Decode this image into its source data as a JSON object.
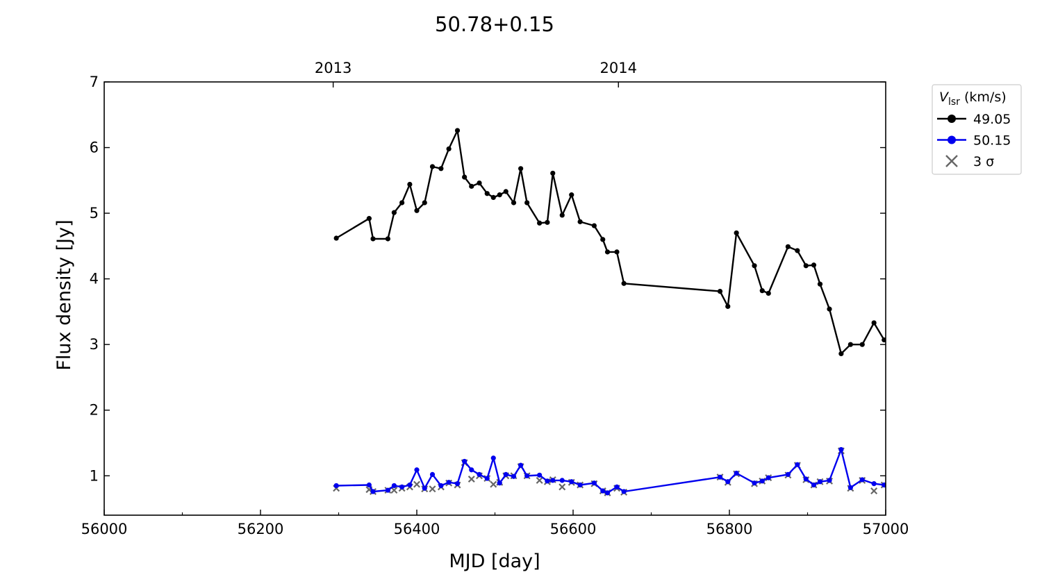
{
  "chart_data": {
    "type": "line",
    "title": "50.78+0.15",
    "xlabel": "MJD [day]",
    "ylabel": "Flux density [Jy]",
    "xlim": [
      56000,
      57000
    ],
    "ylim": [
      0.4,
      7
    ],
    "x_ticks": [
      56000,
      56200,
      56400,
      56600,
      56800,
      57000
    ],
    "y_ticks": [
      1,
      2,
      3,
      4,
      5,
      6,
      7
    ],
    "top_axis_ticks": [
      {
        "label": "2013",
        "x": 56293
      },
      {
        "label": "2014",
        "x": 56658
      }
    ],
    "grid": false,
    "legend": {
      "title_main": "V",
      "title_sub": "lsr",
      "title_unit": " (km/s)",
      "placement": "upper-right-outside"
    },
    "series": [
      {
        "name": "49.05",
        "color": "#000000",
        "marker": "circle",
        "x": [
          56297,
          56339,
          56344,
          56363,
          56371,
          56381,
          56391,
          56400,
          56410,
          56420,
          56431,
          56441,
          56452,
          56461,
          56470,
          56480,
          56490,
          56498,
          56506,
          56514,
          56524,
          56533,
          56541,
          56557,
          56567,
          56574,
          56586,
          56598,
          56609,
          56627,
          56638,
          56644,
          56656,
          56665,
          56788,
          56798,
          56809,
          56832,
          56842,
          56850,
          56875,
          56887,
          56898,
          56908,
          56916,
          56928,
          56943,
          56955,
          56970,
          56985,
          56998
        ],
        "y": [
          4.62,
          4.92,
          4.61,
          4.61,
          5.01,
          5.16,
          5.44,
          5.04,
          5.16,
          5.71,
          5.68,
          5.98,
          6.26,
          5.55,
          5.41,
          5.46,
          5.3,
          5.24,
          5.28,
          5.33,
          5.16,
          5.68,
          5.16,
          4.85,
          4.86,
          5.61,
          4.97,
          5.28,
          4.87,
          4.81,
          4.6,
          4.41,
          4.41,
          3.93,
          3.81,
          3.58,
          4.7,
          4.2,
          3.82,
          3.78,
          4.49,
          4.43,
          4.2,
          4.21,
          3.92,
          3.54,
          2.86,
          3.0,
          3.0,
          3.33,
          3.07
        ]
      },
      {
        "name": "50.15",
        "color": "#0000ee",
        "marker": "circle",
        "x": [
          56297,
          56339,
          56344,
          56363,
          56371,
          56381,
          56391,
          56400,
          56410,
          56420,
          56431,
          56441,
          56452,
          56461,
          56470,
          56480,
          56490,
          56498,
          56506,
          56514,
          56524,
          56533,
          56541,
          56557,
          56567,
          56574,
          56586,
          56598,
          56609,
          56627,
          56638,
          56644,
          56656,
          56665,
          56788,
          56798,
          56809,
          56832,
          56842,
          56850,
          56875,
          56887,
          56898,
          56908,
          56916,
          56928,
          56943,
          56955,
          56970,
          56985,
          56998
        ],
        "y": [
          0.85,
          0.86,
          0.76,
          0.78,
          0.85,
          0.83,
          0.86,
          1.09,
          0.81,
          1.02,
          0.85,
          0.9,
          0.88,
          1.22,
          1.09,
          1.02,
          0.96,
          1.27,
          0.89,
          1.02,
          0.99,
          1.16,
          1.0,
          1.01,
          0.92,
          0.93,
          0.93,
          0.91,
          0.86,
          0.89,
          0.77,
          0.74,
          0.83,
          0.76,
          0.98,
          0.91,
          1.04,
          0.89,
          0.92,
          0.97,
          1.02,
          1.17,
          0.95,
          0.86,
          0.91,
          0.93,
          1.4,
          0.82,
          0.94,
          0.88,
          0.86
        ]
      },
      {
        "name": "3 σ",
        "color": "#666666",
        "marker": "x",
        "x": [
          56297,
          56339,
          56344,
          56363,
          56371,
          56381,
          56391,
          56400,
          56410,
          56420,
          56431,
          56441,
          56452,
          56461,
          56470,
          56480,
          56490,
          56498,
          56506,
          56514,
          56524,
          56533,
          56541,
          56557,
          56567,
          56574,
          56586,
          56598,
          56609,
          56627,
          56638,
          56644,
          56656,
          56665,
          56788,
          56798,
          56809,
          56832,
          56842,
          56850,
          56875,
          56887,
          56898,
          56908,
          56916,
          56928,
          56943,
          56955,
          56970,
          56985,
          56998
        ],
        "y": [
          0.81,
          0.79,
          0.76,
          0.78,
          0.78,
          0.81,
          0.83,
          0.87,
          0.8,
          0.8,
          0.83,
          0.89,
          0.86,
          1.2,
          0.95,
          1.0,
          0.96,
          0.87,
          0.9,
          1.0,
          1.0,
          1.14,
          1.0,
          0.93,
          0.91,
          0.94,
          0.83,
          0.9,
          0.86,
          0.88,
          0.77,
          0.74,
          0.81,
          0.75,
          0.98,
          0.9,
          1.03,
          0.88,
          0.92,
          0.97,
          1.01,
          1.16,
          0.94,
          0.86,
          0.91,
          0.92,
          1.38,
          0.81,
          0.93,
          0.77,
          0.86
        ]
      }
    ]
  }
}
